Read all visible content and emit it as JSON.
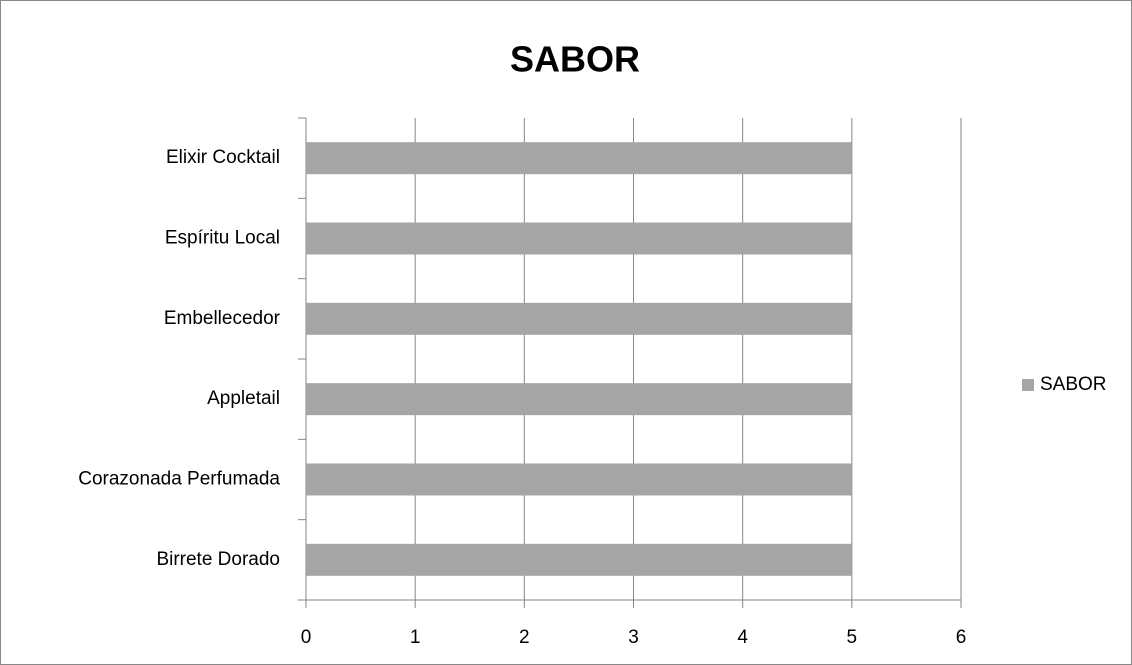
{
  "chart_data": {
    "type": "barh",
    "title": "SABOR",
    "categories": [
      "Birrete Dorado",
      "Corazonada Perfumada",
      "Appletail",
      "Embellecedor",
      "Espíritu Local",
      "Elixir Cocktail"
    ],
    "series": [
      {
        "name": "SABOR",
        "color": "#a5a5a5",
        "values": [
          5,
          5,
          5,
          5,
          5,
          5
        ]
      }
    ],
    "xlim": [
      0,
      6
    ],
    "xticks": [
      0,
      1,
      2,
      3,
      4,
      5,
      6
    ],
    "grid": true,
    "legend": "right"
  }
}
